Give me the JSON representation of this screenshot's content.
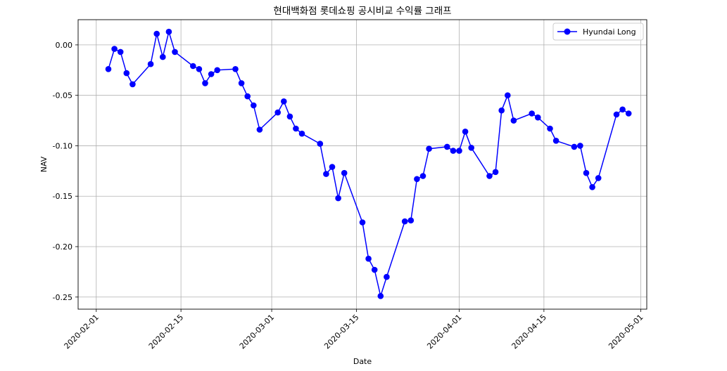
{
  "chart_data": {
    "type": "line",
    "title": "현대백화점 롯데쇼핑 공시비교 수익률 그래프",
    "xlabel": "Date",
    "ylabel": "NAV",
    "xlim": [
      "2020-01-29",
      "2020-05-02"
    ],
    "ylim": [
      -0.262,
      0.025
    ],
    "x_ticks": [
      "2020-02-01",
      "2020-02-15",
      "2020-03-01",
      "2020-03-15",
      "2020-04-01",
      "2020-04-15",
      "2020-05-01"
    ],
    "y_ticks": [
      0.0,
      -0.05,
      -0.1,
      -0.15,
      -0.2,
      -0.25
    ],
    "y_tick_labels": [
      "0.00",
      "-0.05",
      "-0.10",
      "-0.15",
      "-0.20",
      "-0.25"
    ],
    "grid": true,
    "legend_position": "top-right",
    "series": [
      {
        "name": "Hyundai Long",
        "color": "#0000ff",
        "marker": "circle",
        "points": [
          [
            "2020-02-03",
            -0.024
          ],
          [
            "2020-02-04",
            -0.004
          ],
          [
            "2020-02-05",
            -0.007
          ],
          [
            "2020-02-06",
            -0.028
          ],
          [
            "2020-02-07",
            -0.039
          ],
          [
            "2020-02-10",
            -0.019
          ],
          [
            "2020-02-11",
            0.011
          ],
          [
            "2020-02-12",
            -0.012
          ],
          [
            "2020-02-13",
            0.013
          ],
          [
            "2020-02-14",
            -0.007
          ],
          [
            "2020-02-17",
            -0.021
          ],
          [
            "2020-02-18",
            -0.024
          ],
          [
            "2020-02-19",
            -0.038
          ],
          [
            "2020-02-20",
            -0.029
          ],
          [
            "2020-02-21",
            -0.025
          ],
          [
            "2020-02-24",
            -0.024
          ],
          [
            "2020-02-25",
            -0.038
          ],
          [
            "2020-02-26",
            -0.051
          ],
          [
            "2020-02-27",
            -0.06
          ],
          [
            "2020-02-28",
            -0.084
          ],
          [
            "2020-03-02",
            -0.067
          ],
          [
            "2020-03-03",
            -0.056
          ],
          [
            "2020-03-04",
            -0.071
          ],
          [
            "2020-03-05",
            -0.083
          ],
          [
            "2020-03-06",
            -0.088
          ],
          [
            "2020-03-09",
            -0.098
          ],
          [
            "2020-03-10",
            -0.128
          ],
          [
            "2020-03-11",
            -0.121
          ],
          [
            "2020-03-12",
            -0.152
          ],
          [
            "2020-03-13",
            -0.127
          ],
          [
            "2020-03-16",
            -0.176
          ],
          [
            "2020-03-17",
            -0.212
          ],
          [
            "2020-03-18",
            -0.223
          ],
          [
            "2020-03-19",
            -0.249
          ],
          [
            "2020-03-20",
            -0.23
          ],
          [
            "2020-03-23",
            -0.175
          ],
          [
            "2020-03-24",
            -0.174
          ],
          [
            "2020-03-25",
            -0.133
          ],
          [
            "2020-03-26",
            -0.13
          ],
          [
            "2020-03-27",
            -0.103
          ],
          [
            "2020-03-30",
            -0.101
          ],
          [
            "2020-03-31",
            -0.105
          ],
          [
            "2020-04-01",
            -0.105
          ],
          [
            "2020-04-02",
            -0.086
          ],
          [
            "2020-04-03",
            -0.102
          ],
          [
            "2020-04-06",
            -0.13
          ],
          [
            "2020-04-07",
            -0.126
          ],
          [
            "2020-04-08",
            -0.065
          ],
          [
            "2020-04-09",
            -0.05
          ],
          [
            "2020-04-10",
            -0.075
          ],
          [
            "2020-04-13",
            -0.068
          ],
          [
            "2020-04-14",
            -0.072
          ],
          [
            "2020-04-16",
            -0.083
          ],
          [
            "2020-04-17",
            -0.095
          ],
          [
            "2020-04-20",
            -0.101
          ],
          [
            "2020-04-21",
            -0.1
          ],
          [
            "2020-04-22",
            -0.127
          ],
          [
            "2020-04-23",
            -0.141
          ],
          [
            "2020-04-24",
            -0.132
          ],
          [
            "2020-04-27",
            -0.069
          ],
          [
            "2020-04-28",
            -0.064
          ],
          [
            "2020-04-29",
            -0.068
          ]
        ]
      }
    ]
  }
}
